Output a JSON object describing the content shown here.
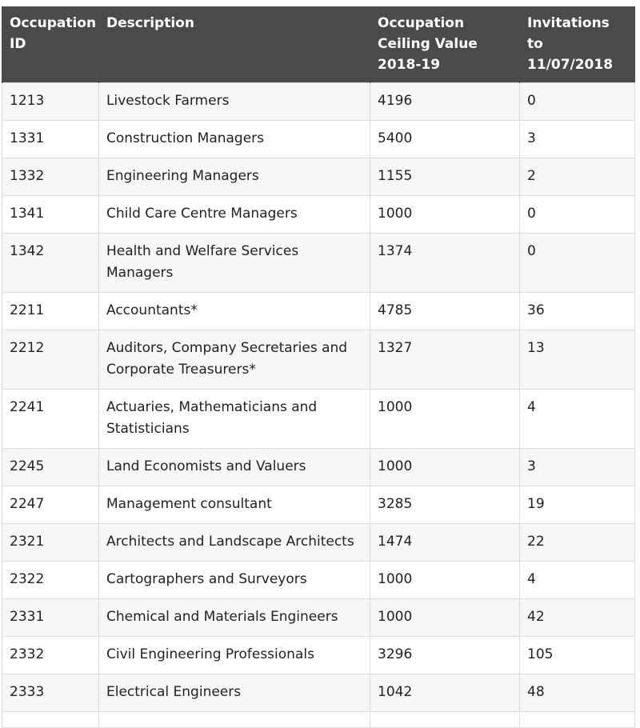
{
  "table": {
    "headers": [
      "Occupation ID",
      "Description",
      "Occupation Ceiling Value 2018-19",
      "Invitations to 11/07/2018"
    ],
    "rows": [
      [
        "1213",
        "Livestock Farmers",
        "4196",
        "0"
      ],
      [
        "1331",
        "Construction Managers",
        "5400",
        "3"
      ],
      [
        "1332",
        "Engineering Managers",
        "1155",
        "2"
      ],
      [
        "1341",
        "Child Care Centre Managers",
        "1000",
        "0"
      ],
      [
        "1342",
        "Health and Welfare Services Managers",
        "1374",
        "0"
      ],
      [
        "2211",
        "Accountants*",
        "4785",
        "36"
      ],
      [
        "2212",
        "Auditors, Company Secretaries and Corporate Treasurers*",
        "1327",
        "13"
      ],
      [
        "2241",
        "Actuaries, Mathematicians and Statisticians",
        "1000",
        "4"
      ],
      [
        "2245",
        "Land Economists and Valuers",
        "1000",
        "3"
      ],
      [
        "2247",
        "Management consultant",
        "3285",
        "19"
      ],
      [
        "2321",
        "Architects and Landscape Architects",
        "1474",
        "22"
      ],
      [
        "2322",
        "Cartographers and Surveyors",
        "1000",
        "4"
      ],
      [
        "2331",
        "Chemical and Materials Engineers",
        "1000",
        "42"
      ],
      [
        "2332",
        "Civil Engineering Professionals",
        "3296",
        "105"
      ],
      [
        "2333",
        "Electrical Engineers",
        "1042",
        "48"
      ],
      [
        "",
        "",
        "",
        ""
      ]
    ]
  }
}
